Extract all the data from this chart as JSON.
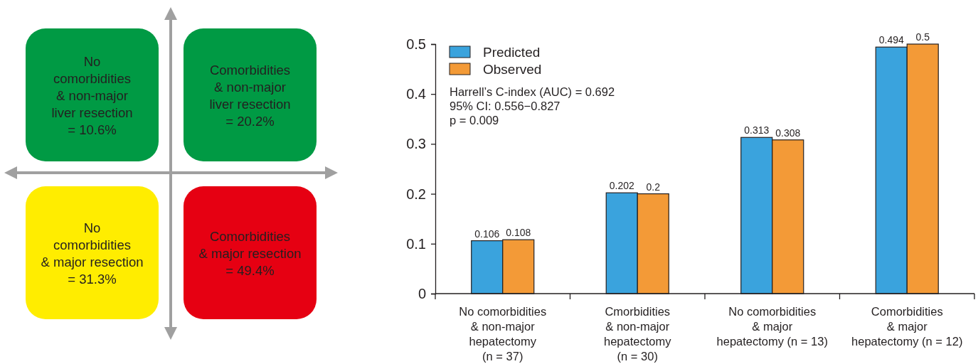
{
  "chart_data": [
    {
      "type": "other",
      "annotations": [
        "No\ncomorbidities\n& non-major\nliver resection\n= 10.6%",
        "Comorbidities\n& non-major\nliver resection\n= 20.2%",
        "No\ncomorbidities\n& major resection\n= 31.3%",
        "Comorbidities\n& major resection\n= 49.4%"
      ],
      "colors": [
        "#009a44",
        "#009a44",
        "#ffed00",
        "#e60012"
      ]
    },
    {
      "type": "bar",
      "categories": [
        "No comorbidities\n& non-major\nhepatectomy\n(n = 37)",
        "Cmorbidities\n& non-major\nhepatectomy\n(n = 30)",
        "No comorbidities\n& major\nhepatectomy (n = 13)",
        "Comorbidities\n& major\nhepatectomy (n = 12)"
      ],
      "series": [
        {
          "name": "Predicted",
          "color": "#3aa3dd",
          "values": [
            0.106,
            0.202,
            0.313,
            0.494
          ]
        },
        {
          "name": "Observed",
          "color": "#f39a37",
          "values": [
            0.108,
            0.2,
            0.308,
            0.5
          ]
        }
      ],
      "ylim": [
        0,
        0.5
      ],
      "yticks": [
        0,
        0.1,
        0.2,
        0.3,
        0.4,
        0.5
      ],
      "data_labels": true,
      "legend": "top left",
      "grid": false,
      "annotations": [
        "Harrell’s C-index (AUC) = 0.692\n95% CI: 0.556−0.827\np = 0.009"
      ]
    }
  ]
}
